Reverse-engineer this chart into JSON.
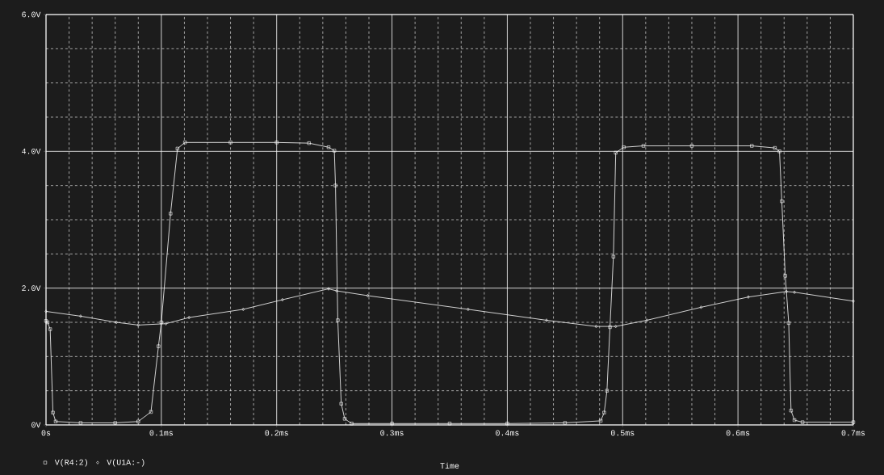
{
  "chart_data": {
    "type": "line",
    "xlabel": "Time",
    "xlim": [
      0,
      0.7
    ],
    "ylim": [
      0,
      6
    ],
    "xticks": [
      {
        "value": 0,
        "label": "0s"
      },
      {
        "value": 0.1,
        "label": "0.1ms"
      },
      {
        "value": 0.2,
        "label": "0.2ms"
      },
      {
        "value": 0.3,
        "label": "0.3ms"
      },
      {
        "value": 0.4,
        "label": "0.4ms"
      },
      {
        "value": 0.5,
        "label": "0.5ms"
      },
      {
        "value": 0.6,
        "label": "0.6ms"
      },
      {
        "value": 0.7,
        "label": "0.7ms"
      }
    ],
    "yticks": [
      {
        "value": 0,
        "label": "0V"
      },
      {
        "value": 2,
        "label": "2.0V"
      },
      {
        "value": 4,
        "label": "4.0V"
      },
      {
        "value": 6,
        "label": "6.0V"
      }
    ],
    "grid": true,
    "legend": "bottom left",
    "series": [
      {
        "name": "V(R4:2)",
        "color": "#ffffff",
        "marker": "square",
        "x": [
          0,
          0.0013,
          0.0036,
          0.006,
          0.0084,
          0.03,
          0.06,
          0.08,
          0.091,
          0.0975,
          0.1,
          0.108,
          0.114,
          0.1205,
          0.16,
          0.2,
          0.228,
          0.245,
          0.25,
          0.251,
          0.253,
          0.256,
          0.259,
          0.265,
          0.3,
          0.35,
          0.4,
          0.45,
          0.481,
          0.484,
          0.4864,
          0.489,
          0.492,
          0.494,
          0.501,
          0.518,
          0.56,
          0.612,
          0.632,
          0.636,
          0.638,
          0.641,
          0.644,
          0.646,
          0.649,
          0.656,
          0.7
        ],
        "values": [
          1.52,
          1.5,
          1.4,
          0.18,
          0.05,
          0.03,
          0.03,
          0.05,
          0.19,
          1.15,
          1.5,
          3.09,
          4.04,
          4.13,
          4.13,
          4.13,
          4.12,
          4.06,
          4.01,
          3.5,
          1.53,
          0.31,
          0.09,
          0.02,
          0.02,
          0.02,
          0.02,
          0.03,
          0.06,
          0.18,
          0.5,
          1.43,
          2.46,
          3.98,
          4.06,
          4.08,
          4.08,
          4.08,
          4.05,
          4.0,
          3.27,
          2.18,
          1.49,
          0.21,
          0.07,
          0.04,
          0.04
        ]
      },
      {
        "name": "V(U1A:-)",
        "color": "#ffffff",
        "marker": "diamond",
        "x": [
          0,
          0.03,
          0.061,
          0.08,
          0.104,
          0.124,
          0.171,
          0.205,
          0.245,
          0.252,
          0.279,
          0.366,
          0.434,
          0.477,
          0.494,
          0.521,
          0.568,
          0.609,
          0.642,
          0.649,
          0.7
        ],
        "values": [
          1.66,
          1.59,
          1.5,
          1.46,
          1.48,
          1.57,
          1.69,
          1.83,
          1.99,
          1.96,
          1.89,
          1.69,
          1.53,
          1.44,
          1.44,
          1.53,
          1.72,
          1.87,
          1.95,
          1.94,
          1.81
        ]
      }
    ]
  }
}
